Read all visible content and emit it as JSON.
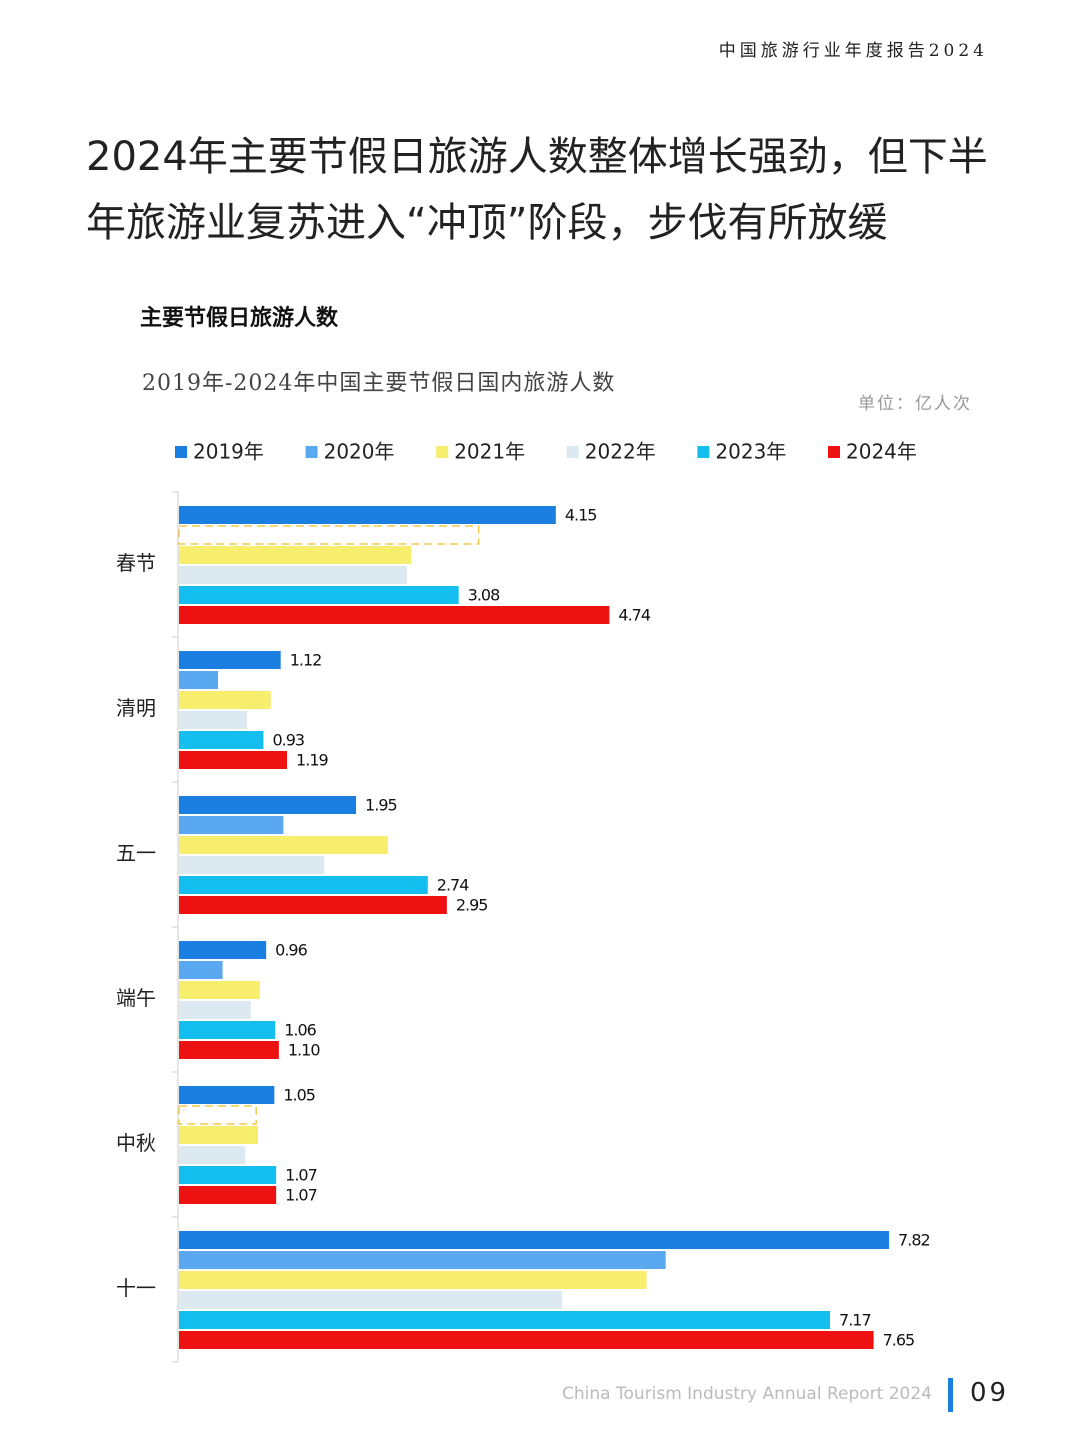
{
  "header": "中国旅游行业年度报告2024",
  "title": "2024年主要节假日旅游人数整体增长强劲，但下半年旅游业复苏进入“冲顶”阶段，步伐有所放缓",
  "section": "主要节假日旅游人数",
  "footer": "China Tourism Industry Annual Report 2024",
  "page_number": "09",
  "chart_data": {
    "type": "hbar",
    "title": "2019年-2024年中国主要节假日国内旅游人数",
    "unit": "单位：亿人次",
    "categories": [
      "春节",
      "清明",
      "五一",
      "端午",
      "中秋",
      "十一"
    ],
    "xlim": [
      0,
      9
    ],
    "series": [
      {
        "name": "2019年",
        "color": "#1a7fe0",
        "values": [
          4.15,
          1.12,
          1.95,
          0.96,
          1.05,
          7.82
        ],
        "value_labels": [
          "4.15",
          "1.12",
          "1.95",
          "0.96",
          "1.05",
          "7.82"
        ]
      },
      {
        "name": "2020年",
        "color": "#5aa8f0",
        "values": [
          null,
          0.43,
          1.15,
          0.48,
          null,
          5.36
        ]
      },
      {
        "name": "2021年",
        "color": "#f7ee6e",
        "values": [
          2.56,
          1.01,
          2.3,
          0.89,
          0.87,
          5.15
        ]
      },
      {
        "name": "2022年",
        "color": "#dce9f0",
        "values": [
          2.51,
          0.75,
          1.6,
          0.79,
          0.73,
          4.22
        ]
      },
      {
        "name": "2023年",
        "color": "#14bff0",
        "values": [
          3.08,
          0.93,
          2.74,
          1.06,
          1.07,
          7.17
        ],
        "value_labels": [
          "3.08",
          "0.93",
          "2.74",
          "1.06",
          "1.07",
          "7.17"
        ]
      },
      {
        "name": "2024年",
        "color": "#ee1111",
        "values": [
          4.74,
          1.19,
          2.95,
          1.1,
          1.07,
          7.65
        ],
        "value_labels": [
          "4.74",
          "1.19",
          "2.95",
          "1.10",
          "1.07",
          "7.65"
        ]
      }
    ]
  }
}
